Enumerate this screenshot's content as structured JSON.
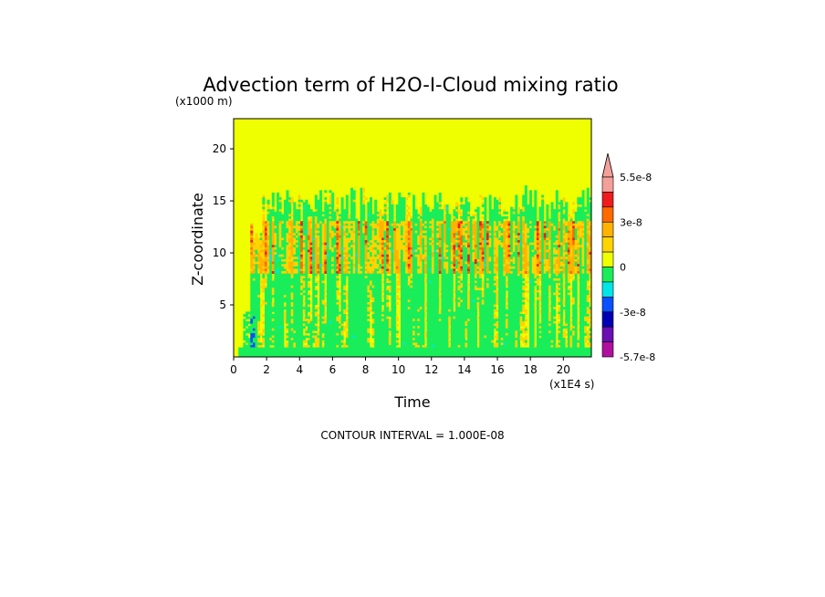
{
  "chart_data": {
    "type": "heatmap",
    "title": "Advection term of H2O-I-Cloud mixing ratio",
    "xlabel": "Time",
    "ylabel": "Z-coordinate",
    "x_unit": "(x1E4 s)",
    "y_unit": "(x1000 m)",
    "xlim": [
      0,
      21.7
    ],
    "ylim": [
      0,
      22.9
    ],
    "x_ticks": [
      "0",
      "2",
      "4",
      "6",
      "8",
      "10",
      "12",
      "14",
      "16",
      "18",
      "20"
    ],
    "y_ticks": [
      "5",
      "10",
      "15",
      "20"
    ],
    "colorbar": {
      "labels": [
        "5.5e-8",
        "3e-8",
        "0",
        "-3e-8",
        "-5.7e-8"
      ],
      "colors": [
        "#f4a09a",
        "#ee1c1c",
        "#ff6a00",
        "#ffb300",
        "#ffd400",
        "#f0ff00",
        "#19ee5a",
        "#00e6e6",
        "#0a50ff",
        "#0000b4",
        "#6a0fb4",
        "#b0109e"
      ]
    },
    "background_value_color": "#f0ff00",
    "contour_interval": "CONTOUR INTERVAL = 1.000E-08"
  }
}
